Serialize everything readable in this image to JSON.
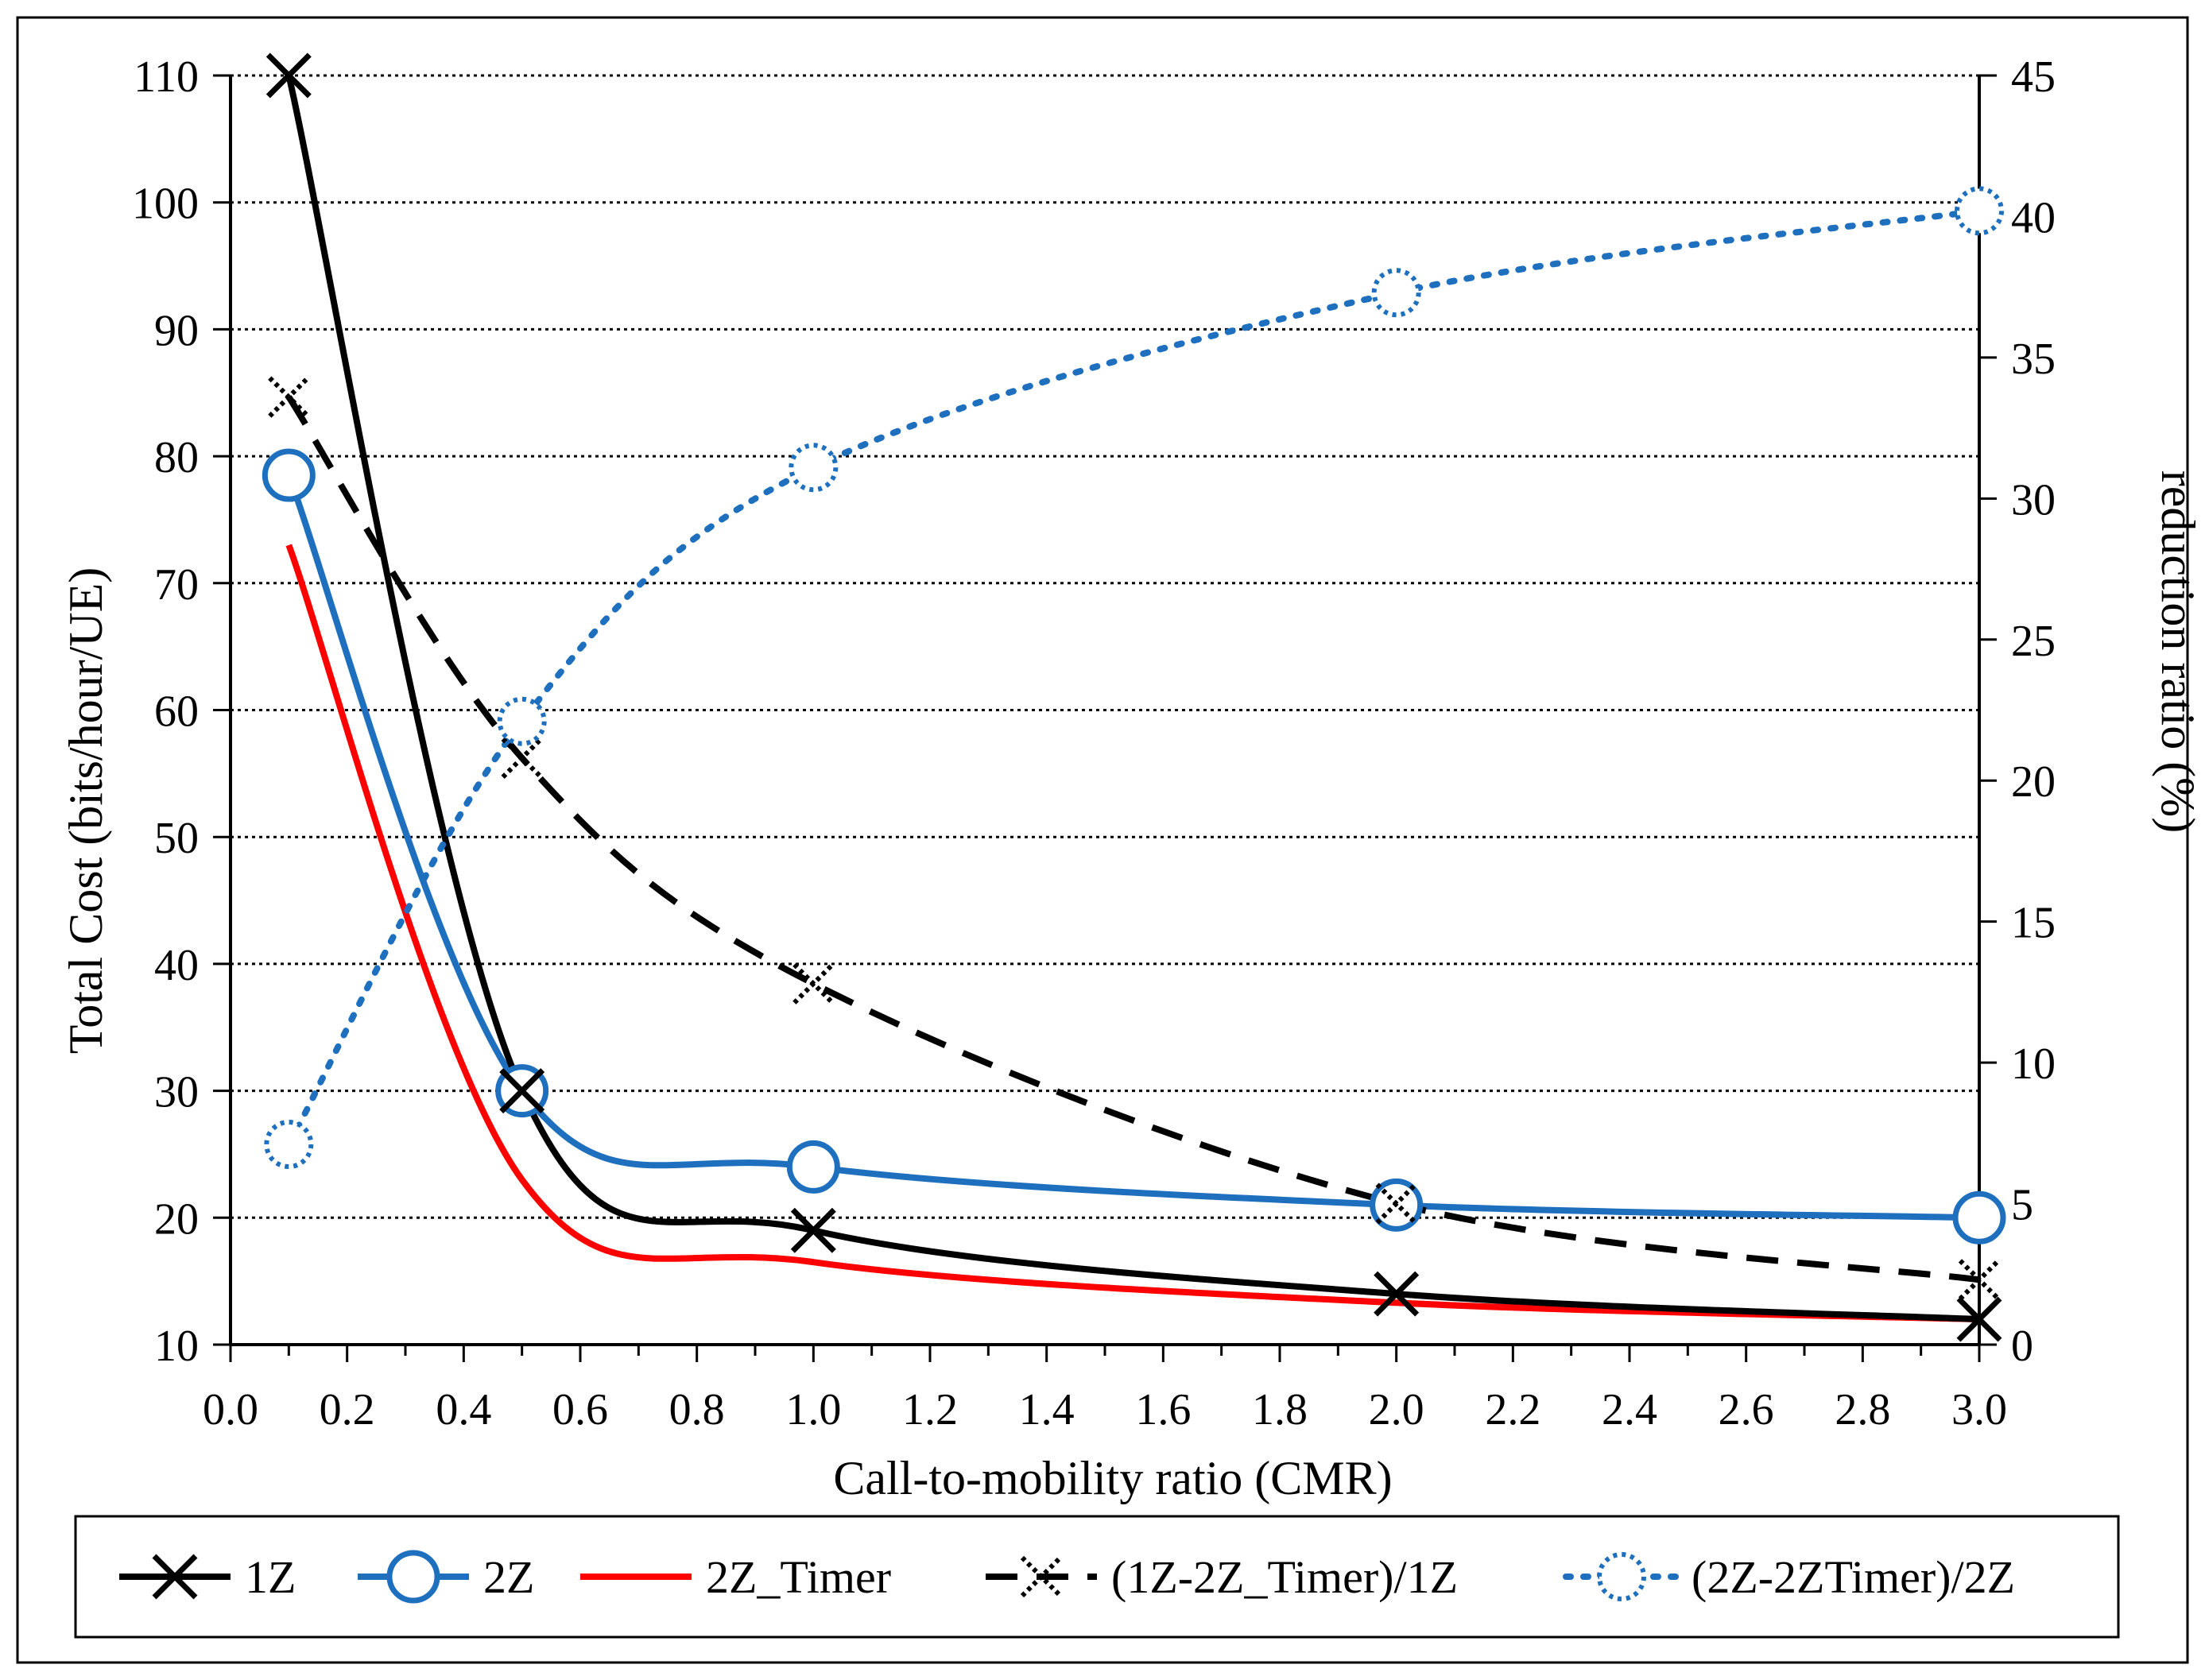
{
  "chart_data": {
    "type": "line",
    "title": "",
    "xlabel": "Call-to-mobility ratio (CMR)",
    "ylabel": "Total Cost (bits/hour/UE)",
    "y2label": "reduction ratio (%)",
    "xlim": [
      0.0,
      3.0
    ],
    "ylim": [
      10,
      110
    ],
    "y2lim": [
      0,
      45
    ],
    "xticks": [
      "0.0",
      "0.2",
      "0.4",
      "0.6",
      "0.8",
      "1.0",
      "1.2",
      "1.4",
      "1.6",
      "1.8",
      "2.0",
      "2.2",
      "2.4",
      "2.6",
      "2.8",
      "3.0"
    ],
    "yticks": [
      "10",
      "20",
      "30",
      "40",
      "50",
      "60",
      "70",
      "80",
      "90",
      "100",
      "110"
    ],
    "y2ticks": [
      "0",
      "5",
      "10",
      "15",
      "20",
      "25",
      "30",
      "35",
      "40",
      "45"
    ],
    "grid": "horizontal dotted",
    "legend_position": "bottom",
    "x": [
      0.1,
      0.5,
      1.0,
      2.0,
      3.0
    ],
    "series": [
      {
        "name": "1Z",
        "axis": "left",
        "color": "#000000",
        "style": "solid",
        "marker": "x",
        "values": [
          110,
          30,
          19,
          14,
          12
        ]
      },
      {
        "name": "2Z",
        "axis": "left",
        "color": "#1f6fbf",
        "style": "solid",
        "marker": "circle",
        "values": [
          78.5,
          30,
          24,
          21,
          20
        ]
      },
      {
        "name": "2Z_Timer",
        "axis": "left",
        "color": "#ff0000",
        "style": "solid",
        "marker": "none",
        "values": [
          73,
          23,
          16.5,
          13.3,
          12
        ]
      },
      {
        "name": "(1Z-2Z_Timer)/1Z",
        "axis": "right",
        "color": "#000000",
        "style": "dashed",
        "marker": "dotted-x",
        "values": [
          33.6,
          20.8,
          12.8,
          5,
          2.3
        ]
      },
      {
        "name": "(2Z-2ZTimer)/2Z",
        "axis": "right",
        "color": "#1f6fbf",
        "style": "dotted",
        "marker": "dotted-circle",
        "values": [
          7.1,
          22.1,
          31.1,
          37.3,
          40.2
        ]
      }
    ]
  }
}
